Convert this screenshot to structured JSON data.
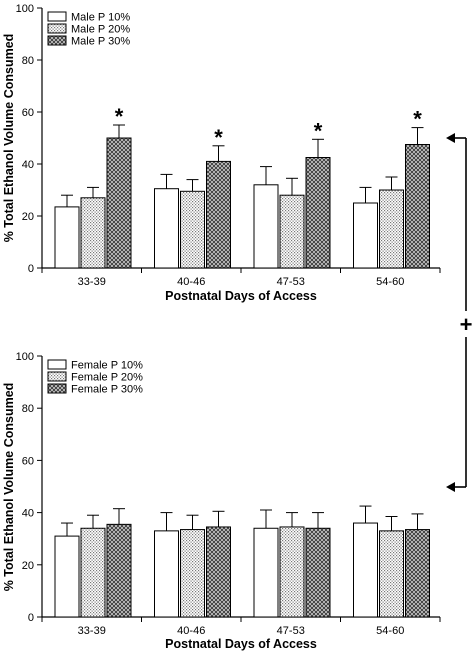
{
  "chart_data": [
    {
      "type": "bar",
      "categories": [
        "33-39",
        "40-46",
        "47-53",
        "54-60"
      ],
      "series": [
        {
          "name": "Male P 10%",
          "values": [
            23.5,
            30.5,
            32,
            25
          ],
          "errors": [
            4.5,
            5.5,
            7,
            6
          ],
          "pattern": "white"
        },
        {
          "name": "Male P 20%",
          "values": [
            27,
            29.5,
            28,
            30
          ],
          "errors": [
            4,
            4.5,
            6.5,
            5
          ],
          "pattern": "dots"
        },
        {
          "name": "Male P 30%",
          "values": [
            50,
            41,
            42.5,
            47.5
          ],
          "errors": [
            5,
            6,
            7,
            6.5
          ],
          "pattern": "crosshatch"
        }
      ],
      "significance": [
        {
          "category": "33-39",
          "series": "Male P 30%",
          "label": "*"
        },
        {
          "category": "40-46",
          "series": "Male P 30%",
          "label": "*"
        },
        {
          "category": "47-53",
          "series": "Male P 30%",
          "label": "*"
        },
        {
          "category": "54-60",
          "series": "Male P 30%",
          "label": "*"
        }
      ],
      "xlabel": "Postnatal Days of Access",
      "ylabel": "% Total Ethanol Volume Consumed",
      "ylim": [
        0,
        100
      ],
      "yticks": [
        0,
        20,
        40,
        60,
        80,
        100
      ],
      "grid": false,
      "legend_position": "top-left"
    },
    {
      "type": "bar",
      "categories": [
        "33-39",
        "40-46",
        "47-53",
        "54-60"
      ],
      "series": [
        {
          "name": "Female P 10%",
          "values": [
            31,
            33,
            34,
            36
          ],
          "errors": [
            5,
            7,
            7,
            6.5
          ],
          "pattern": "white"
        },
        {
          "name": "Female P 20%",
          "values": [
            34,
            33.5,
            34.5,
            33
          ],
          "errors": [
            5,
            5.5,
            5.5,
            5.5
          ],
          "pattern": "dots"
        },
        {
          "name": "Female P 30%",
          "values": [
            35.5,
            34.5,
            34,
            33.5
          ],
          "errors": [
            6,
            6,
            6,
            6
          ],
          "pattern": "crosshatch"
        }
      ],
      "xlabel": "Postnatal Days of Access",
      "ylabel": "% Total Ethanol Volume Consumed",
      "ylim": [
        0,
        100
      ],
      "yticks": [
        0,
        20,
        40,
        60,
        80,
        100
      ],
      "grid": false,
      "legend_position": "top-left"
    }
  ],
  "comparison_bracket": {
    "label": "+",
    "ylevel_top": 50,
    "ylevel_bottom": 50
  },
  "colors": {
    "ink": "#000000",
    "background": "#ffffff",
    "dot_fill": "#dcdcdc",
    "hatch_fill": "#b8b8b8"
  }
}
